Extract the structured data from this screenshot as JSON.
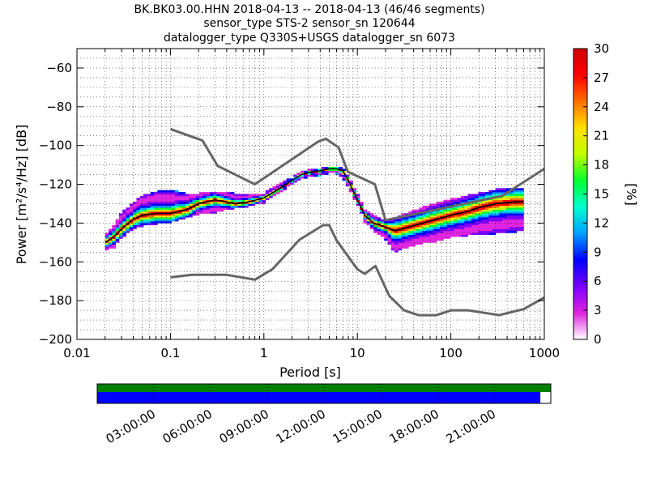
{
  "title": {
    "line1": "BK.BK03.00.HHN   2018-04-13 -- 2018-04-13  (46/46 segments)",
    "line2": "sensor_type STS-2 sensor_sn 120644",
    "line3": "datalogger_type Q330S+USGS datalogger_sn 6073"
  },
  "chart_data": {
    "type": "heatmap",
    "xlabel": "Period [s]",
    "ylabel": "Power [m²/s⁴/Hz] [dB]",
    "x_scale": "log",
    "xlim": [
      0.01,
      1000
    ],
    "ylim": [
      -200,
      -50
    ],
    "x_ticks": [
      {
        "value": 0.01,
        "label": "0.01"
      },
      {
        "value": 0.1,
        "label": "0.1"
      },
      {
        "value": 1,
        "label": "1"
      },
      {
        "value": 10,
        "label": "10"
      },
      {
        "value": 100,
        "label": "100"
      },
      {
        "value": 1000,
        "label": "1000"
      }
    ],
    "y_ticks": [
      {
        "value": -60,
        "label": "−60"
      },
      {
        "value": -80,
        "label": "−80"
      },
      {
        "value": -100,
        "label": "−100"
      },
      {
        "value": -120,
        "label": "−120"
      },
      {
        "value": -140,
        "label": "−140"
      },
      {
        "value": -160,
        "label": "−160"
      },
      {
        "value": -180,
        "label": "−180"
      },
      {
        "value": -200,
        "label": "−200"
      }
    ],
    "grid": true,
    "colorbar": {
      "label": "[%]",
      "range": [
        0,
        30
      ],
      "ticks": [
        {
          "value": 0,
          "label": "0"
        },
        {
          "value": 3,
          "label": "3"
        },
        {
          "value": 6,
          "label": "6"
        },
        {
          "value": 9,
          "label": "9"
        },
        {
          "value": 12,
          "label": "12"
        },
        {
          "value": 15,
          "label": "15"
        },
        {
          "value": 18,
          "label": "18"
        },
        {
          "value": 21,
          "label": "21"
        },
        {
          "value": 24,
          "label": "24"
        },
        {
          "value": 27,
          "label": "27"
        },
        {
          "value": 30,
          "label": "30"
        }
      ],
      "colors": [
        "#ffffff",
        "#e024e0",
        "#7a00ff",
        "#0000ff",
        "#00a0ff",
        "#00ffd0",
        "#00ff30",
        "#c0ff00",
        "#ffe000",
        "#ff7000",
        "#ff0000",
        "#d00000"
      ]
    },
    "high_noise_model": {
      "x": [
        0.1,
        0.22,
        0.32,
        0.8,
        3.8,
        4.6,
        6.3,
        7.9,
        15.4,
        20,
        354.8,
        1000
      ],
      "y": [
        -91.5,
        -97.4,
        -110.5,
        -120,
        -98,
        -96.5,
        -101,
        -113.5,
        -120,
        -138.5,
        -126,
        -112
      ]
    },
    "low_noise_model": {
      "x": [
        0.1,
        0.17,
        0.4,
        0.8,
        1.24,
        2.4,
        4.3,
        5,
        6,
        10,
        12,
        15.6,
        21.9,
        31.6,
        45,
        70,
        101,
        154,
        328,
        600,
        1000
      ],
      "y": [
        -168,
        -166.7,
        -166.7,
        -169.2,
        -163.7,
        -148.6,
        -141.1,
        -141.1,
        -149,
        -163.8,
        -166.2,
        -162.1,
        -177.5,
        -185,
        -187.5,
        -187.5,
        -185,
        -185,
        -187.5,
        -184.4,
        -178.4
      ]
    },
    "mode_curve": {
      "x": [
        0.02,
        0.025,
        0.03,
        0.04,
        0.05,
        0.07,
        0.1,
        0.15,
        0.2,
        0.3,
        0.5,
        0.7,
        1,
        1.5,
        2,
        2.5,
        3,
        4,
        5,
        6,
        7,
        8,
        10,
        12,
        15,
        20,
        25,
        30,
        50,
        70,
        100,
        150,
        200,
        300,
        500,
        600
      ],
      "y": [
        -150,
        -147,
        -143,
        -138,
        -136,
        -135,
        -135,
        -133,
        -130,
        -128,
        -130,
        -129,
        -127,
        -122,
        -118,
        -115,
        -114,
        -113,
        -112,
        -112,
        -113,
        -118,
        -128,
        -136,
        -140,
        -142,
        -144,
        -143,
        -140,
        -138,
        -136,
        -134,
        -132,
        -130,
        -129,
        -129
      ]
    },
    "pdf_spread": {
      "x": [
        0.02,
        0.025,
        0.03,
        0.04,
        0.05,
        0.07,
        0.1,
        0.15,
        0.2,
        0.3,
        0.5,
        0.7,
        1,
        1.5,
        2,
        2.5,
        3,
        4,
        5,
        6,
        7,
        8,
        10,
        12,
        15,
        20,
        25,
        30,
        50,
        70,
        100,
        150,
        200,
        300,
        500,
        600
      ],
      "low": [
        -154,
        -152,
        -147,
        -143,
        -141,
        -140,
        -139,
        -137,
        -135,
        -134,
        -132,
        -131,
        -129,
        -124,
        -119,
        -117,
        -116,
        -115,
        -114,
        -114,
        -116,
        -121,
        -130,
        -139,
        -144,
        -148,
        -155,
        -153,
        -150,
        -149,
        -147,
        -146,
        -146,
        -145,
        -144,
        -144
      ],
      "high": [
        -146,
        -141,
        -135,
        -130,
        -126,
        -124,
        -123,
        -125,
        -125,
        -124,
        -125,
        -125,
        -125,
        -120,
        -117,
        -114,
        -113,
        -112,
        -111,
        -111,
        -111,
        -116,
        -125,
        -133,
        -136,
        -139,
        -138,
        -136,
        -132,
        -130,
        -128,
        -126,
        -125,
        -123,
        -122,
        -122
      ]
    }
  },
  "timeline": {
    "data_coverage": 1.0,
    "gap_free_fraction": 0.977,
    "colors": {
      "coverage": "#008000",
      "segments": "#0000ff"
    },
    "hours": [
      {
        "value": 3,
        "label": "03:00:00"
      },
      {
        "value": 6,
        "label": "06:00:00"
      },
      {
        "value": 9,
        "label": "09:00:00"
      },
      {
        "value": 12,
        "label": "12:00:00"
      },
      {
        "value": 15,
        "label": "15:00:00"
      },
      {
        "value": 18,
        "label": "18:00:00"
      },
      {
        "value": 21,
        "label": "21:00:00"
      }
    ]
  }
}
